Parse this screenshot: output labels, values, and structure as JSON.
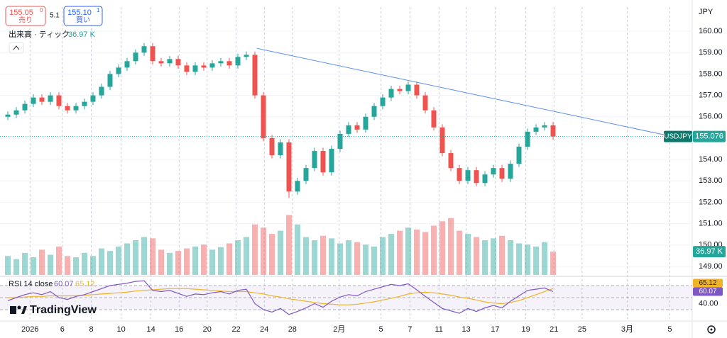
{
  "toolbar": {
    "sell_price": "155.05",
    "sell_sup": "0",
    "sell_label": "売り",
    "spread": "5.1",
    "buy_price": "155.10",
    "buy_sup": "1",
    "buy_label": "買い",
    "currency": "JPY"
  },
  "watermark": "TradingView",
  "chart_data": {
    "type": "candlestick",
    "symbol": "USDJPY",
    "open": [
      156.0,
      156.1,
      156.3,
      156.6,
      156.9,
      156.7,
      157.0,
      156.5,
      156.3,
      156.5,
      156.7,
      157.0,
      157.4,
      158.0,
      158.3,
      158.6,
      159.0,
      159.3,
      158.6,
      158.5,
      158.7,
      158.4,
      158.1,
      158.4,
      158.3,
      158.5,
      158.6,
      158.4,
      158.8,
      158.9,
      157.0,
      155.0,
      154.2,
      154.8,
      152.5,
      153.0,
      153.6,
      154.4,
      153.4,
      154.5,
      155.2,
      155.6,
      155.4,
      156.0,
      156.5,
      156.9,
      157.3,
      157.2,
      157.5,
      157.0,
      156.3,
      155.5,
      154.3,
      153.6,
      153.0,
      153.5,
      152.9,
      153.3,
      153.6,
      153.1,
      153.8,
      154.6,
      155.3,
      155.5,
      155.6
    ],
    "high": [
      156.25,
      156.45,
      156.75,
      157.05,
      157.05,
      157.15,
      157.15,
      156.65,
      156.65,
      156.85,
      157.15,
      157.55,
      158.15,
      158.45,
      158.75,
      159.15,
      159.45,
      159.45,
      158.75,
      158.85,
      158.85,
      158.55,
      158.55,
      158.55,
      158.65,
      158.75,
      158.75,
      158.95,
      159.05,
      159.05,
      157.15,
      155.15,
      154.95,
      154.95,
      153.15,
      153.75,
      154.55,
      154.55,
      154.65,
      155.35,
      155.75,
      155.75,
      156.15,
      156.65,
      157.05,
      157.45,
      157.45,
      157.65,
      157.65,
      157.15,
      156.45,
      155.65,
      154.45,
      153.75,
      153.65,
      153.65,
      153.45,
      153.75,
      153.75,
      153.95,
      154.75,
      155.45,
      155.65,
      155.75,
      155.75
    ],
    "low": [
      155.85,
      155.95,
      156.15,
      156.45,
      156.55,
      156.55,
      156.35,
      156.15,
      156.15,
      156.35,
      156.55,
      156.85,
      157.25,
      157.85,
      158.15,
      158.45,
      158.85,
      158.45,
      158.35,
      158.35,
      158.25,
      157.95,
      157.95,
      158.15,
      158.15,
      158.35,
      158.25,
      158.25,
      158.65,
      156.85,
      154.85,
      154.05,
      154.05,
      152.2,
      152.35,
      152.85,
      153.45,
      153.25,
      153.25,
      154.35,
      155.05,
      155.25,
      155.25,
      155.85,
      156.35,
      156.75,
      157.05,
      157.05,
      156.85,
      156.15,
      155.35,
      154.15,
      153.45,
      152.85,
      152.85,
      152.75,
      152.75,
      153.15,
      152.95,
      152.95,
      153.65,
      154.45,
      155.15,
      155.35,
      154.93
    ],
    "close": [
      156.1,
      156.3,
      156.6,
      156.9,
      156.7,
      157.0,
      156.5,
      156.3,
      156.5,
      156.7,
      157.0,
      157.4,
      158.0,
      158.3,
      158.6,
      159.0,
      159.3,
      158.6,
      158.5,
      158.7,
      158.4,
      158.1,
      158.4,
      158.3,
      158.5,
      158.6,
      158.4,
      158.8,
      158.9,
      157.0,
      155.0,
      154.2,
      154.8,
      152.5,
      153.0,
      153.6,
      154.4,
      153.4,
      154.5,
      155.2,
      155.6,
      155.4,
      156.0,
      156.5,
      156.9,
      157.3,
      157.2,
      157.5,
      157.0,
      156.3,
      155.5,
      154.3,
      153.6,
      153.0,
      153.5,
      152.9,
      153.3,
      153.6,
      153.1,
      153.8,
      154.6,
      155.3,
      155.5,
      155.6,
      155.076
    ],
    "colors": {
      "up": "#26a69a",
      "down": "#ef5350"
    },
    "xlim": [
      0,
      80.83
    ],
    "xticks": [
      {
        "value": 3.1,
        "label": "2026"
      },
      {
        "value": 6.9,
        "label": "6"
      },
      {
        "value": 10.3,
        "label": "8"
      },
      {
        "value": 13.8,
        "label": "10"
      },
      {
        "value": 17.3,
        "label": "14"
      },
      {
        "value": 20.6,
        "label": "16"
      },
      {
        "value": 23.9,
        "label": "20"
      },
      {
        "value": 27.3,
        "label": "22"
      },
      {
        "value": 30.6,
        "label": "24"
      },
      {
        "value": 33.9,
        "label": "28"
      },
      {
        "value": 39.4,
        "label": "2月"
      },
      {
        "value": 44.3,
        "label": "5"
      },
      {
        "value": 47.7,
        "label": "7"
      },
      {
        "value": 51.1,
        "label": "11"
      },
      {
        "value": 54.3,
        "label": "13"
      },
      {
        "value": 57.7,
        "label": "17"
      },
      {
        "value": 61.3,
        "label": "19"
      },
      {
        "value": 64.6,
        "label": "21"
      },
      {
        "value": 67.9,
        "label": "25"
      },
      {
        "value": 73.2,
        "label": "3月"
      },
      {
        "value": 78.2,
        "label": "5"
      }
    ],
    "ylim": [
      148.6,
      161.13
    ],
    "yticks": [
      {
        "value": 149,
        "label": "149.00"
      },
      {
        "value": 150,
        "label": "150.00"
      },
      {
        "value": 151,
        "label": "151.00"
      },
      {
        "value": 152,
        "label": "152.00"
      },
      {
        "value": 153,
        "label": "153.00"
      },
      {
        "value": 154,
        "label": "154.00"
      },
      {
        "value": 155,
        "label": "155.00"
      },
      {
        "value": 156,
        "label": "156.00"
      },
      {
        "value": 157,
        "label": "157.00"
      },
      {
        "value": 158,
        "label": "158.00"
      },
      {
        "value": 159,
        "label": "159.00"
      },
      {
        "value": 160,
        "label": "160.00"
      }
    ],
    "grid": true,
    "trendline": {
      "x": [
        29.75,
        77.5
      ],
      "y": [
        159.2,
        155.16
      ],
      "color": "#5b8def"
    },
    "volume": {
      "title": "出来高 · ティック",
      "values": [
        30,
        25,
        35,
        28,
        40,
        32,
        45,
        30,
        28,
        35,
        30,
        42,
        38,
        45,
        50,
        55,
        60,
        58,
        40,
        35,
        38,
        42,
        45,
        48,
        40,
        44,
        50,
        55,
        60,
        80,
        75,
        65,
        70,
        95,
        80,
        60,
        55,
        62,
        58,
        50,
        55,
        52,
        48,
        45,
        60,
        65,
        70,
        75,
        72,
        68,
        78,
        85,
        90,
        70,
        65,
        60,
        55,
        58,
        62,
        55,
        50,
        48,
        45,
        52,
        36.97
      ],
      "value_labels": [
        null,
        null,
        null,
        null,
        null,
        null,
        null,
        null,
        null,
        null,
        null,
        null,
        null,
        null,
        null,
        null,
        null,
        null,
        null,
        null,
        null,
        null,
        null,
        null,
        null,
        null,
        null,
        null,
        null,
        null,
        null,
        null,
        null,
        null,
        null,
        null,
        null,
        null,
        null,
        null,
        null,
        null,
        null,
        null,
        null,
        null,
        null,
        null,
        null,
        null,
        null,
        null,
        null,
        null,
        null,
        null,
        null,
        null,
        null,
        null,
        null,
        null,
        null,
        null,
        "36.97 K"
      ],
      "ylim": [
        0,
        110
      ]
    },
    "rsi": {
      "title": "RSI 14 close",
      "values": [
        45,
        50,
        55,
        58,
        55,
        60,
        50,
        47,
        52,
        55,
        60,
        65,
        70,
        72,
        74,
        77,
        78,
        62,
        60,
        62,
        57,
        52,
        56,
        55,
        58,
        60,
        56,
        62,
        64,
        40,
        30,
        26,
        32,
        22,
        27,
        33,
        40,
        34,
        44,
        51,
        55,
        53,
        60,
        64,
        68,
        72,
        70,
        73,
        63,
        52,
        42,
        32,
        28,
        24,
        32,
        27,
        33,
        37,
        33,
        44,
        53,
        62,
        64,
        66,
        60.07
      ],
      "color": "#7e57c2",
      "ma": {
        "values": [
          50,
          50,
          51,
          52,
          52,
          53,
          53,
          53,
          53,
          54,
          55,
          56,
          57,
          58,
          59,
          61,
          62,
          63,
          64,
          65,
          65,
          65,
          64,
          63,
          62,
          61,
          60,
          60,
          60,
          58,
          56,
          53,
          51,
          48,
          46,
          44,
          42,
          40,
          39,
          38,
          38,
          39,
          41,
          43,
          46,
          49,
          52,
          56,
          58,
          59,
          58,
          56,
          54,
          51,
          49,
          46,
          43,
          41,
          40,
          42,
          45,
          50,
          55,
          60,
          65.12
        ],
        "color": "#f0b429"
      },
      "ylim": [
        14.7,
        81.8
      ],
      "yticks": [
        {
          "value": 40,
          "label": "40.00"
        }
      ],
      "bands": [
        70,
        50,
        30
      ]
    }
  }
}
